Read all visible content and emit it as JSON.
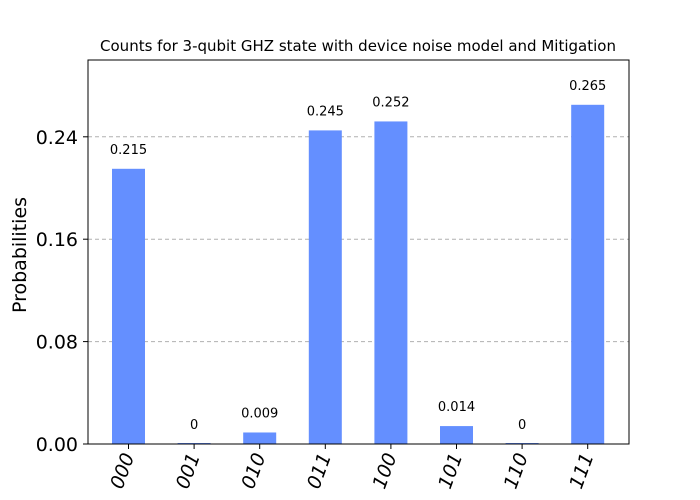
{
  "chart_data": {
    "type": "bar",
    "title": "Counts for 3-qubit GHZ state with device noise model and Mitigation",
    "xlabel": "",
    "ylabel": "Probabilities",
    "categories": [
      "000",
      "001",
      "010",
      "011",
      "100",
      "101",
      "110",
      "111"
    ],
    "values": [
      0.215,
      0,
      0.009,
      0.245,
      0.252,
      0.014,
      0,
      0.265
    ],
    "data_labels": [
      "0.215",
      "0",
      "0.009",
      "0.245",
      "0.252",
      "0.014",
      "0",
      "0.265"
    ],
    "ylim": [
      0,
      0.3
    ],
    "yticks": [
      0.0,
      0.08,
      0.16,
      0.24
    ],
    "ytick_labels": [
      "0.00",
      "0.08",
      "0.16",
      "0.24"
    ],
    "grid": "horizontal dashed",
    "bar_color": "#648fff"
  }
}
